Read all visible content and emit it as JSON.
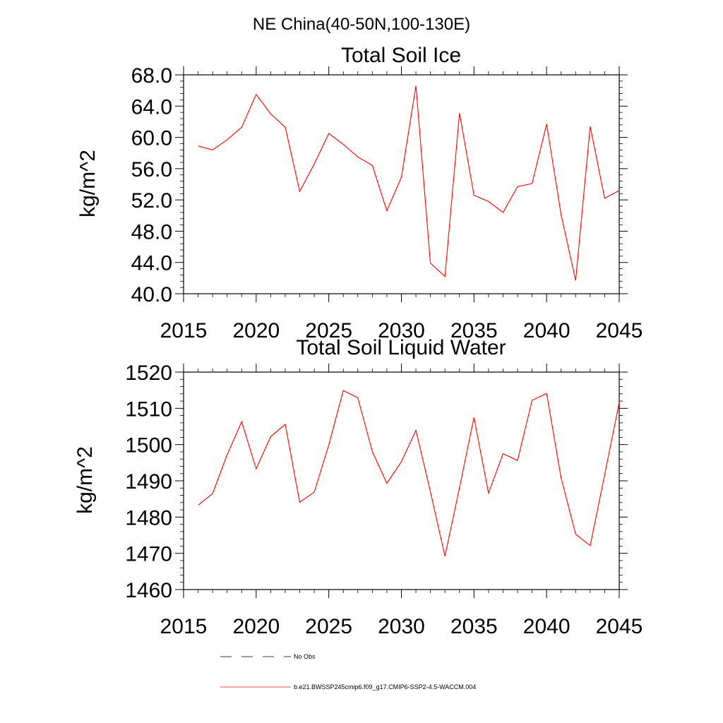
{
  "figure": {
    "title": "NE China(40-50N,100-130E)"
  },
  "legend": {
    "items": [
      {
        "label": "No Obs",
        "style": "dashed",
        "color": "#000000"
      },
      {
        "label": "b.e21.BWSSP245cmip6.f09_g17.CMIP6-SSP2-4.5-WACCM.004",
        "style": "solid",
        "color": "#ff0000"
      }
    ]
  },
  "chart_data": [
    {
      "type": "line",
      "title": "Total Soil Ice",
      "xlabel": "",
      "ylabel": "kg/m^2",
      "xlim": [
        2015,
        2045
      ],
      "ylim": [
        40,
        68
      ],
      "xticks": [
        2015,
        2020,
        2025,
        2030,
        2035,
        2040,
        2045
      ],
      "xtick_labels": [
        "2015",
        "2020",
        "2025",
        "2030",
        "2035",
        "2040",
        "2045"
      ],
      "yticks": [
        40,
        44,
        48,
        52,
        56,
        60,
        64,
        68
      ],
      "ytick_labels": [
        "40.0",
        "44.0",
        "48.0",
        "52.0",
        "56.0",
        "60.0",
        "64.0",
        "68.0"
      ],
      "grid": false,
      "series": [
        {
          "name": "b.e21.BWSSP245cmip6.f09_g17.CMIP6-SSP2-4.5-WACCM.004",
          "color": "#ff0000",
          "x": [
            2016,
            2017,
            2018,
            2019,
            2020,
            2021,
            2022,
            2023,
            2024,
            2025,
            2026,
            2027,
            2028,
            2029,
            2030,
            2031,
            2032,
            2033,
            2034,
            2035,
            2036,
            2037,
            2038,
            2039,
            2040,
            2041,
            2042,
            2043,
            2044,
            2045
          ],
          "values": [
            58.9,
            58.4,
            59.7,
            61.3,
            65.5,
            63.0,
            61.3,
            53.1,
            56.6,
            60.5,
            59.1,
            57.5,
            56.4,
            50.6,
            54.9,
            66.6,
            43.9,
            42.2,
            63.1,
            52.6,
            51.8,
            50.4,
            53.7,
            54.1,
            61.7,
            50.1,
            41.7,
            61.4,
            52.2,
            53.2
          ]
        }
      ]
    },
    {
      "type": "line",
      "title": "Total Soil Liquid Water",
      "xlabel": "",
      "ylabel": "kg/m^2",
      "xlim": [
        2015,
        2045
      ],
      "ylim": [
        1460,
        1520
      ],
      "xticks": [
        2015,
        2020,
        2025,
        2030,
        2035,
        2040,
        2045
      ],
      "xtick_labels": [
        "2015",
        "2020",
        "2025",
        "2030",
        "2035",
        "2040",
        "2045"
      ],
      "yticks": [
        1460,
        1470,
        1480,
        1490,
        1500,
        1510,
        1520
      ],
      "ytick_labels": [
        "1460",
        "1470",
        "1480",
        "1490",
        "1500",
        "1510",
        "1520"
      ],
      "grid": false,
      "series": [
        {
          "name": "b.e21.BWSSP245cmip6.f09_g17.CMIP6-SSP2-4.5-WACCM.004",
          "color": "#ff0000",
          "x": [
            2016,
            2017,
            2018,
            2019,
            2020,
            2021,
            2022,
            2023,
            2024,
            2025,
            2026,
            2027,
            2028,
            2029,
            2030,
            2031,
            2032,
            2033,
            2034,
            2035,
            2036,
            2037,
            2038,
            2039,
            2040,
            2041,
            2042,
            2043,
            2044,
            2045
          ],
          "values": [
            1483.3,
            1486.5,
            1497.2,
            1506.3,
            1493.3,
            1502.2,
            1505.6,
            1484.1,
            1486.9,
            1499.9,
            1514.9,
            1512.9,
            1498.0,
            1489.3,
            1495.3,
            1503.9,
            1487.0,
            1469.2,
            1488.1,
            1507.5,
            1486.6,
            1497.5,
            1495.6,
            1512.2,
            1514.1,
            1490.8,
            1475.3,
            1472.1,
            1491.7,
            1511.6
          ]
        }
      ]
    }
  ]
}
